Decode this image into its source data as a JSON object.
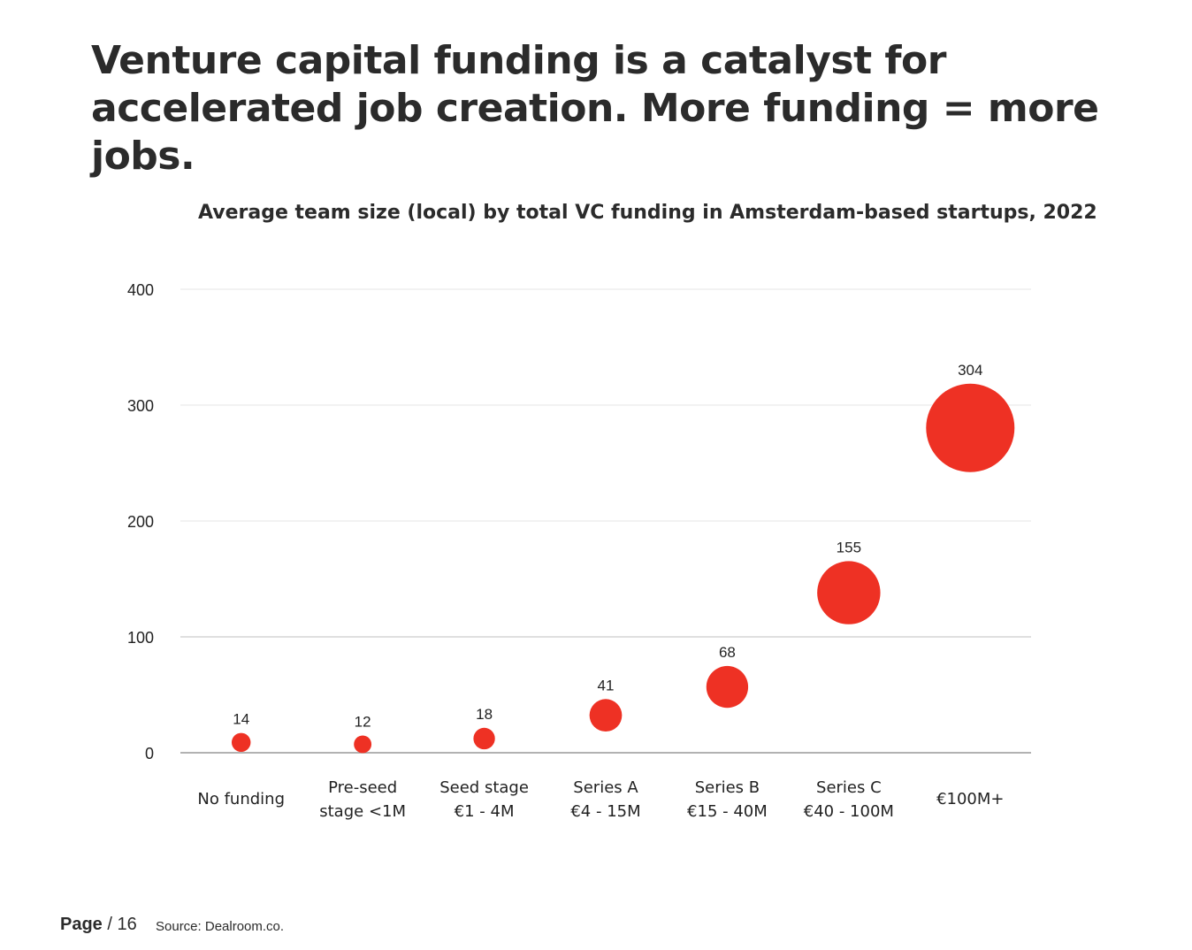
{
  "headline": "Venture capital funding is a catalyst for accelerated job creation. More funding = more jobs.",
  "footer": {
    "page_word": "Page",
    "page_rest": " / 16",
    "source": "Source: Dealroom.co."
  },
  "colors": {
    "bubble": "#ee3124",
    "grid": "#e6e6e6",
    "grid_100": "#cccccc",
    "baseline": "#999999",
    "text": "#2b2b2b"
  },
  "chart_data": {
    "type": "scatter",
    "title": "Average team size (local) by total VC funding in Amsterdam-based startups, 2022",
    "xlabel": "",
    "ylabel": "",
    "ylim": [
      0,
      400
    ],
    "yticks": [
      0,
      100,
      200,
      300,
      400
    ],
    "grid": true,
    "categories": [
      [
        "No funding"
      ],
      [
        "Pre-seed",
        "stage <1M"
      ],
      [
        "Seed stage",
        "€1 - 4M"
      ],
      [
        "Series A",
        "€4 - 15M"
      ],
      [
        "Series B",
        "€15 - 40M"
      ],
      [
        "Series C",
        "€40 - 100M"
      ],
      [
        "€100M+"
      ]
    ],
    "values": [
      14,
      12,
      18,
      41,
      68,
      155,
      304
    ],
    "labels": [
      "14",
      "12",
      "18",
      "41",
      "68",
      "155",
      "304"
    ]
  }
}
